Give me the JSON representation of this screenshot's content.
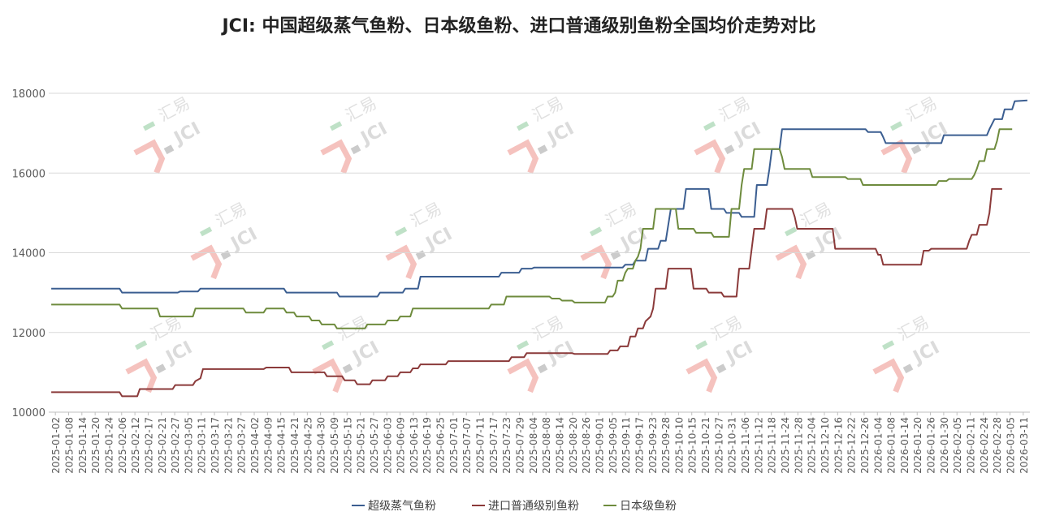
{
  "chart_data": {
    "type": "line",
    "title": "JCI: 中国超级蒸气鱼粉、日本级鱼粉、进口普通级别鱼粉全国均价走势对比",
    "xlabel": "",
    "ylabel": "",
    "ylim": [
      10000,
      18000
    ],
    "yticks": [
      "10000",
      "12000",
      "14000",
      "16000",
      "18000"
    ],
    "grid": true,
    "legend_position": "bottom",
    "watermark": "汇易 JCI",
    "x_tick_labels": [
      "2025-01-02",
      "2025-01-08",
      "2025-01-14",
      "2025-01-20",
      "2025-01-24",
      "2025-02-06",
      "2025-02-12",
      "2025-02-17",
      "2025-02-21",
      "2025-02-27",
      "2025-03-05",
      "2025-03-11",
      "2025-03-17",
      "2025-03-21",
      "2025-03-27",
      "2025-04-02",
      "2025-04-09",
      "2025-04-15",
      "2025-04-21",
      "2025-04-25",
      "2025-04-30",
      "2025-05-09",
      "2025-05-15",
      "2025-05-21",
      "2025-05-27",
      "2025-06-03",
      "2025-06-09",
      "2025-06-13",
      "2025-06-19",
      "2025-06-25",
      "2025-07-01",
      "2025-07-07",
      "2025-07-11",
      "2025-07-17",
      "2025-07-23",
      "2025-07-29",
      "2025-08-04",
      "2025-08-08",
      "2025-08-14",
      "2025-08-20",
      "2025-08-26",
      "2025-09-01",
      "2025-09-05",
      "2025-09-11",
      "2025-09-17",
      "2025-09-23",
      "2025-09-28",
      "2025-10-10",
      "2025-10-15",
      "2025-10-21",
      "2025-10-27",
      "2025-10-31",
      "2025-11-06",
      "2025-11-12",
      "2025-11-18",
      "2025-11-24",
      "2025-11-28",
      "2025-12-04",
      "2025-12-10",
      "2025-12-16",
      "2025-12-22",
      "2025-12-26",
      "2026-01-04",
      "2026-01-08",
      "2026-01-14",
      "2026-01-20",
      "2026-01-26",
      "2026-01-30",
      "2026-02-05",
      "2026-02-11",
      "2026-02-24",
      "2026-02-28",
      "2026-03-05",
      "2026-03-11"
    ],
    "series": [
      {
        "name": "超级蒸气鱼粉",
        "color": "#3b5e91",
        "points": [
          [
            0,
            13100
          ],
          [
            13.5,
            13100
          ],
          [
            14,
            13000
          ],
          [
            25,
            13000
          ],
          [
            25.5,
            13030
          ],
          [
            29,
            13030
          ],
          [
            29.5,
            13100
          ],
          [
            46,
            13100
          ],
          [
            46.5,
            13000
          ],
          [
            56.5,
            13000
          ],
          [
            57,
            12900
          ],
          [
            64.5,
            12900
          ],
          [
            65,
            13000
          ],
          [
            69.5,
            13000
          ],
          [
            70,
            13100
          ],
          [
            72.5,
            13100
          ],
          [
            73,
            13400
          ],
          [
            88.5,
            13400
          ],
          [
            89,
            13500
          ],
          [
            92.5,
            13500
          ],
          [
            93,
            13600
          ],
          [
            95,
            13600
          ],
          [
            95.5,
            13630
          ],
          [
            113,
            13630
          ],
          [
            113.5,
            13700
          ],
          [
            115,
            13700
          ],
          [
            115.5,
            13800
          ],
          [
            117.5,
            13800
          ],
          [
            118,
            14100
          ],
          [
            120,
            14100
          ],
          [
            120.5,
            14300
          ],
          [
            121.5,
            14300
          ],
          [
            122,
            14700
          ],
          [
            122.5,
            15100
          ],
          [
            125,
            15100
          ],
          [
            125.5,
            15600
          ],
          [
            130,
            15600
          ],
          [
            130.5,
            15100
          ],
          [
            133,
            15100
          ],
          [
            133.5,
            15000
          ],
          [
            136,
            15000
          ],
          [
            136.5,
            14900
          ],
          [
            139,
            14900
          ],
          [
            139.5,
            15700
          ],
          [
            141.5,
            15700
          ],
          [
            142,
            16100
          ],
          [
            142.5,
            16600
          ],
          [
            144,
            16600
          ],
          [
            144.5,
            17100
          ],
          [
            161,
            17100
          ],
          [
            161.5,
            17030
          ],
          [
            164,
            17030
          ],
          [
            164.5,
            16900
          ],
          [
            165,
            16750
          ],
          [
            176,
            16750
          ],
          [
            176.5,
            16950
          ],
          [
            185,
            16950
          ],
          [
            185.5,
            17100
          ],
          [
            186.5,
            17350
          ],
          [
            188,
            17350
          ],
          [
            188.5,
            17600
          ],
          [
            190,
            17600
          ],
          [
            190.5,
            17800
          ],
          [
            193,
            17820
          ]
        ]
      },
      {
        "name": "进口普通级别鱼粉",
        "color": "#8b3a3a",
        "points": [
          [
            0,
            10500
          ],
          [
            13.5,
            10500
          ],
          [
            14,
            10400
          ],
          [
            17,
            10400
          ],
          [
            17.5,
            10580
          ],
          [
            24,
            10580
          ],
          [
            24.5,
            10680
          ],
          [
            28,
            10680
          ],
          [
            28.5,
            10780
          ],
          [
            29.5,
            10850
          ],
          [
            30,
            11080
          ],
          [
            42,
            11080
          ],
          [
            42.5,
            11120
          ],
          [
            47,
            11120
          ],
          [
            47.5,
            11000
          ],
          [
            54,
            11000
          ],
          [
            54.5,
            10900
          ],
          [
            57.5,
            10900
          ],
          [
            58,
            10800
          ],
          [
            60,
            10800
          ],
          [
            60.5,
            10700
          ],
          [
            63,
            10700
          ],
          [
            63.5,
            10800
          ],
          [
            66,
            10800
          ],
          [
            66.5,
            10900
          ],
          [
            68.5,
            10900
          ],
          [
            69,
            11000
          ],
          [
            71,
            11000
          ],
          [
            71.5,
            11100
          ],
          [
            72.5,
            11100
          ],
          [
            73,
            11200
          ],
          [
            78,
            11200
          ],
          [
            78.5,
            11280
          ],
          [
            90.5,
            11280
          ],
          [
            91,
            11380
          ],
          [
            93.5,
            11380
          ],
          [
            94,
            11480
          ],
          [
            103,
            11480
          ],
          [
            103.5,
            11460
          ],
          [
            110,
            11460
          ],
          [
            110.5,
            11550
          ],
          [
            112,
            11550
          ],
          [
            112.5,
            11650
          ],
          [
            114,
            11650
          ],
          [
            114.5,
            11900
          ],
          [
            115.5,
            11900
          ],
          [
            116,
            12100
          ],
          [
            117,
            12100
          ],
          [
            117.5,
            12280
          ],
          [
            118.5,
            12400
          ],
          [
            119,
            12600
          ],
          [
            119.5,
            13100
          ],
          [
            121.5,
            13100
          ],
          [
            122,
            13600
          ],
          [
            126.5,
            13600
          ],
          [
            127,
            13100
          ],
          [
            129.5,
            13100
          ],
          [
            130,
            13000
          ],
          [
            132.5,
            13000
          ],
          [
            133,
            12900
          ],
          [
            135.5,
            12900
          ],
          [
            136,
            13600
          ],
          [
            138,
            13600
          ],
          [
            138.5,
            14100
          ],
          [
            139,
            14600
          ],
          [
            141,
            14600
          ],
          [
            141.5,
            15100
          ],
          [
            146.5,
            15100
          ],
          [
            147,
            14900
          ],
          [
            147.5,
            14600
          ],
          [
            154.5,
            14600
          ],
          [
            155,
            14100
          ],
          [
            163,
            14100
          ],
          [
            163.5,
            13950
          ],
          [
            164,
            13950
          ],
          [
            164.5,
            13700
          ],
          [
            172,
            13700
          ],
          [
            172.5,
            14050
          ],
          [
            173.5,
            14050
          ],
          [
            174,
            14100
          ],
          [
            181,
            14100
          ],
          [
            181.5,
            14300
          ],
          [
            182,
            14450
          ],
          [
            183,
            14450
          ],
          [
            183.5,
            14700
          ],
          [
            185,
            14700
          ],
          [
            185.5,
            15000
          ],
          [
            186,
            15600
          ],
          [
            188,
            15600
          ]
        ]
      },
      {
        "name": "日本级鱼粉",
        "color": "#6e8b3d",
        "points": [
          [
            0,
            12700
          ],
          [
            13.5,
            12700
          ],
          [
            14,
            12600
          ],
          [
            21,
            12600
          ],
          [
            21.5,
            12400
          ],
          [
            28,
            12400
          ],
          [
            28.5,
            12600
          ],
          [
            38,
            12600
          ],
          [
            38.5,
            12500
          ],
          [
            42,
            12500
          ],
          [
            42.5,
            12600
          ],
          [
            46,
            12600
          ],
          [
            46.5,
            12500
          ],
          [
            48,
            12500
          ],
          [
            48.5,
            12400
          ],
          [
            51,
            12400
          ],
          [
            51.5,
            12300
          ],
          [
            53,
            12300
          ],
          [
            53.5,
            12200
          ],
          [
            56,
            12200
          ],
          [
            56.5,
            12100
          ],
          [
            62,
            12100
          ],
          [
            62.5,
            12200
          ],
          [
            66,
            12200
          ],
          [
            66.5,
            12300
          ],
          [
            68.5,
            12300
          ],
          [
            69,
            12400
          ],
          [
            71,
            12400
          ],
          [
            71.5,
            12600
          ],
          [
            86.5,
            12600
          ],
          [
            87,
            12700
          ],
          [
            89.5,
            12700
          ],
          [
            90,
            12900
          ],
          [
            98.5,
            12900
          ],
          [
            99,
            12850
          ],
          [
            100.5,
            12850
          ],
          [
            101,
            12800
          ],
          [
            103,
            12800
          ],
          [
            103.5,
            12750
          ],
          [
            109.5,
            12750
          ],
          [
            110,
            12900
          ],
          [
            111,
            12900
          ],
          [
            111.5,
            13000
          ],
          [
            112,
            13300
          ],
          [
            113,
            13300
          ],
          [
            113.5,
            13500
          ],
          [
            114,
            13600
          ],
          [
            115,
            13600
          ],
          [
            115.5,
            13800
          ],
          [
            116,
            13900
          ],
          [
            116.5,
            14100
          ],
          [
            117,
            14600
          ],
          [
            119,
            14600
          ],
          [
            119.5,
            15100
          ],
          [
            123.5,
            15100
          ],
          [
            124,
            14600
          ],
          [
            127,
            14600
          ],
          [
            127.5,
            14500
          ],
          [
            130.5,
            14500
          ],
          [
            131,
            14400
          ],
          [
            134,
            14400
          ],
          [
            134.5,
            15100
          ],
          [
            136,
            15100
          ],
          [
            136.5,
            15700
          ],
          [
            137,
            16100
          ],
          [
            138.5,
            16100
          ],
          [
            139,
            16600
          ],
          [
            144,
            16600
          ],
          [
            144.5,
            16400
          ],
          [
            145,
            16100
          ],
          [
            150,
            16100
          ],
          [
            150.5,
            15900
          ],
          [
            157,
            15900
          ],
          [
            157.5,
            15850
          ],
          [
            160,
            15850
          ],
          [
            160.5,
            15700
          ],
          [
            175,
            15700
          ],
          [
            175.5,
            15800
          ],
          [
            177,
            15800
          ],
          [
            177.5,
            15850
          ],
          [
            182,
            15850
          ],
          [
            182.5,
            15950
          ],
          [
            183,
            16100
          ],
          [
            183.5,
            16300
          ],
          [
            184.5,
            16300
          ],
          [
            185,
            16600
          ],
          [
            186.5,
            16600
          ],
          [
            187,
            16800
          ],
          [
            187.5,
            17100
          ],
          [
            190,
            17100
          ]
        ]
      }
    ]
  }
}
